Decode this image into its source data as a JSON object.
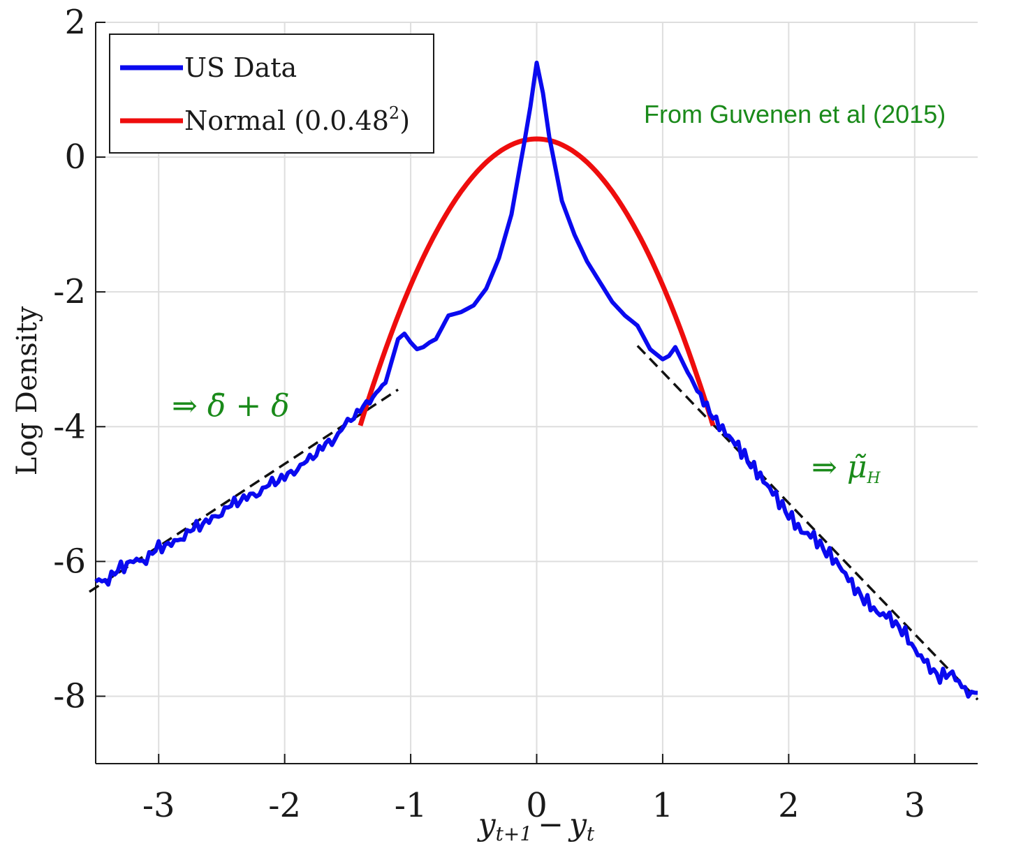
{
  "chart_data": {
    "type": "line",
    "ylabel": "Log Density",
    "xlabel": "y_{t+1} − y_t",
    "xlabel_parts": {
      "y1": "y",
      "sub1": "t+1",
      "minus": "−",
      "y2": "y",
      "sub2": "t"
    },
    "xlim": [
      -3.5,
      3.5
    ],
    "ylim": [
      -9,
      2
    ],
    "xticks": [
      -3,
      -2,
      -1,
      0,
      1,
      2,
      3
    ],
    "xtick_labels": [
      "-3",
      "-2",
      "-1",
      "0",
      "1",
      "2",
      "3"
    ],
    "yticks": [
      2,
      0,
      -2,
      -4,
      -6,
      -8
    ],
    "ytick_labels": [
      "2",
      "0",
      "-2",
      "-4",
      "-6",
      "-8"
    ],
    "grid": true,
    "legend_position": "top-left",
    "colors": {
      "us_data": "#0a0aef",
      "normal": "#ee0d0d",
      "fit": "#111111",
      "annotation": "#1a8a1a"
    },
    "legend": [
      {
        "label": "US Data",
        "color": "#0a0aef"
      },
      {
        "label": "Normal (0.0.48",
        "superscript": "2",
        "suffix": ")",
        "color": "#ee0d0d"
      }
    ],
    "series": [
      {
        "name": "US Data",
        "x": [
          -3.5,
          -3.4,
          -3.3,
          -3.2,
          -3.1,
          -3.0,
          -2.9,
          -2.8,
          -2.7,
          -2.6,
          -2.5,
          -2.4,
          -2.3,
          -2.2,
          -2.1,
          -2.0,
          -1.9,
          -1.8,
          -1.7,
          -1.6,
          -1.5,
          -1.4,
          -1.3,
          -1.2,
          -1.1,
          -1.05,
          -1.0,
          -0.95,
          -0.9,
          -0.85,
          -0.8,
          -0.7,
          -0.6,
          -0.5,
          -0.4,
          -0.3,
          -0.2,
          -0.1,
          -0.05,
          0.0,
          0.05,
          0.1,
          0.2,
          0.3,
          0.4,
          0.5,
          0.6,
          0.7,
          0.8,
          0.9,
          1.0,
          1.05,
          1.1,
          1.2,
          1.3,
          1.4,
          1.5,
          1.6,
          1.7,
          1.8,
          1.9,
          2.0,
          2.1,
          2.2,
          2.3,
          2.4,
          2.5,
          2.6,
          2.7,
          2.8,
          2.9,
          3.0,
          3.1,
          3.2,
          3.3,
          3.4,
          3.5
        ],
        "y": [
          -6.3,
          -6.25,
          -6.1,
          -6.0,
          -5.95,
          -5.8,
          -5.75,
          -5.6,
          -5.5,
          -5.4,
          -5.25,
          -5.15,
          -5.05,
          -4.95,
          -4.85,
          -4.75,
          -4.6,
          -4.5,
          -4.3,
          -4.15,
          -3.95,
          -3.75,
          -3.55,
          -3.35,
          -2.7,
          -2.62,
          -2.75,
          -2.85,
          -2.82,
          -2.75,
          -2.7,
          -2.35,
          -2.3,
          -2.2,
          -1.95,
          -1.5,
          -0.85,
          0.2,
          0.75,
          1.4,
          0.95,
          0.3,
          -0.65,
          -1.15,
          -1.55,
          -1.85,
          -2.15,
          -2.35,
          -2.5,
          -2.85,
          -3.0,
          -2.95,
          -2.82,
          -3.2,
          -3.55,
          -3.85,
          -4.1,
          -4.3,
          -4.55,
          -4.8,
          -5.05,
          -5.3,
          -5.55,
          -5.65,
          -5.85,
          -6.05,
          -6.35,
          -6.55,
          -6.75,
          -6.85,
          -7.0,
          -7.3,
          -7.55,
          -7.7,
          -7.65,
          -7.95,
          -7.95
        ]
      },
      {
        "name": "Normal (0.0.48^2)",
        "x_range": [
          -1.4,
          1.4
        ],
        "peak": 0.27,
        "sigma": 0.48
      }
    ],
    "fit_lines": [
      {
        "x": [
          -3.55,
          -1.1
        ],
        "y": [
          -6.45,
          -3.45
        ]
      },
      {
        "x": [
          0.8,
          3.5
        ],
        "y": [
          -2.8,
          -8.05
        ]
      }
    ],
    "annotations": [
      {
        "text": "From Guvenen et al (2015)"
      },
      {
        "text": "⇒ δ̄ + δ"
      },
      {
        "text": "⇒ μ̃",
        "subscript": "H"
      }
    ]
  }
}
